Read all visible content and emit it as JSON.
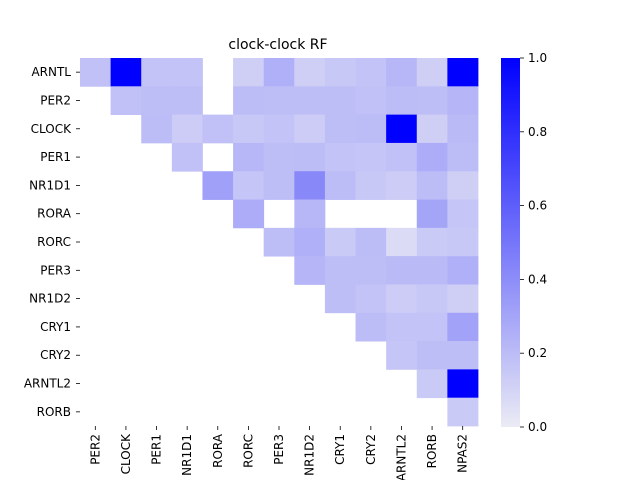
{
  "chart_data": {
    "type": "heatmap",
    "title": "clock-clock RF",
    "x_categories": [
      "PER2",
      "CLOCK",
      "PER1",
      "NR1D1",
      "RORA",
      "RORC",
      "PER3",
      "NR1D2",
      "CRY1",
      "CRY2",
      "ARNTL2",
      "RORB",
      "NPAS2"
    ],
    "y_categories": [
      "ARNTL",
      "PER2",
      "CLOCK",
      "PER1",
      "NR1D1",
      "RORA",
      "RORC",
      "PER3",
      "NR1D2",
      "CRY1",
      "CRY2",
      "ARNTL2",
      "RORB"
    ],
    "values": [
      [
        0.18,
        1.0,
        0.17,
        0.17,
        null,
        0.12,
        0.25,
        0.12,
        0.15,
        0.17,
        0.22,
        0.12,
        1.0
      ],
      [
        null,
        0.18,
        0.19,
        0.19,
        null,
        0.2,
        0.19,
        0.19,
        0.19,
        0.18,
        0.2,
        0.19,
        0.23
      ],
      [
        null,
        null,
        0.2,
        0.13,
        0.18,
        0.15,
        0.17,
        0.13,
        0.19,
        0.2,
        1.0,
        0.12,
        0.21
      ],
      [
        null,
        null,
        null,
        0.18,
        null,
        0.22,
        0.19,
        0.2,
        0.17,
        0.16,
        0.18,
        0.27,
        0.2
      ],
      [
        null,
        null,
        null,
        null,
        0.32,
        0.16,
        0.19,
        0.42,
        0.2,
        0.15,
        0.13,
        0.2,
        0.12
      ],
      [
        null,
        null,
        null,
        null,
        null,
        0.27,
        null,
        0.22,
        null,
        null,
        null,
        0.3,
        0.16
      ],
      [
        null,
        null,
        null,
        null,
        null,
        null,
        0.19,
        0.25,
        0.14,
        0.2,
        0.07,
        0.14,
        0.15
      ],
      [
        null,
        null,
        null,
        null,
        null,
        null,
        null,
        0.23,
        0.19,
        0.19,
        0.21,
        0.21,
        0.25
      ],
      [
        null,
        null,
        null,
        null,
        null,
        null,
        null,
        null,
        0.19,
        0.17,
        0.13,
        0.15,
        0.12
      ],
      [
        null,
        null,
        null,
        null,
        null,
        null,
        null,
        null,
        null,
        0.2,
        0.17,
        0.17,
        0.31
      ],
      [
        null,
        null,
        null,
        null,
        null,
        null,
        null,
        null,
        null,
        null,
        0.16,
        0.19,
        0.19
      ],
      [
        null,
        null,
        null,
        null,
        null,
        null,
        null,
        null,
        null,
        null,
        null,
        0.14,
        1.0
      ],
      [
        null,
        null,
        null,
        null,
        null,
        null,
        null,
        null,
        null,
        null,
        null,
        null,
        0.14
      ]
    ],
    "colorbar": {
      "min": 0.0,
      "max": 1.0,
      "ticks": [
        "0.0",
        "0.2",
        "0.4",
        "0.6",
        "0.8",
        "1.0"
      ],
      "color_low": "#ebebf5",
      "color_high": "#0000ff"
    },
    "grid": false
  }
}
